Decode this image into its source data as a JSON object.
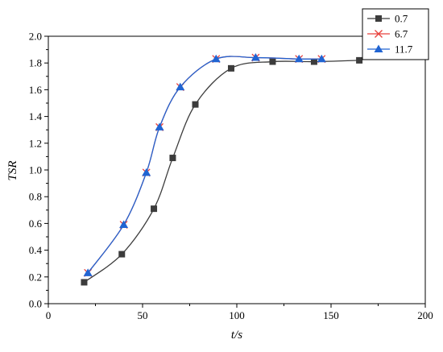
{
  "chart_data": {
    "type": "line",
    "xlabel": "t/s",
    "ylabel": "TSR",
    "xlim": [
      0,
      200
    ],
    "ylim": [
      0,
      2.0
    ],
    "x_ticks": [
      0,
      50,
      100,
      150,
      200
    ],
    "y_ticks": [
      "0.0",
      "0.2",
      "0.4",
      "0.6",
      "0.8",
      "1.0",
      "1.2",
      "1.4",
      "1.6",
      "1.8",
      "2.0"
    ],
    "legend_position": "top-right",
    "grid": false,
    "series": [
      {
        "name": "0.7",
        "color": "#3c3c3c",
        "marker": "square",
        "points": [
          [
            19,
            0.16
          ],
          [
            39,
            0.37
          ],
          [
            56,
            0.71
          ],
          [
            66,
            1.09
          ],
          [
            78,
            1.49
          ],
          [
            97,
            1.76
          ],
          [
            119,
            1.81
          ],
          [
            141,
            1.81
          ],
          [
            165,
            1.82
          ]
        ]
      },
      {
        "name": "6.7",
        "color": "#e8413c",
        "marker": "x",
        "points": [
          [
            21,
            0.23
          ],
          [
            40,
            0.59
          ],
          [
            52,
            0.98
          ],
          [
            59,
            1.32
          ],
          [
            70,
            1.62
          ],
          [
            89,
            1.83
          ],
          [
            110,
            1.84
          ],
          [
            133,
            1.83
          ],
          [
            145,
            1.83
          ]
        ]
      },
      {
        "name": "11.7",
        "color": "#2164d2",
        "marker": "triangle",
        "points": [
          [
            21,
            0.23
          ],
          [
            40,
            0.59
          ],
          [
            52,
            0.98
          ],
          [
            59,
            1.32
          ],
          [
            70,
            1.62
          ],
          [
            89,
            1.83
          ],
          [
            110,
            1.84
          ],
          [
            133,
            1.83
          ],
          [
            145,
            1.83
          ]
        ]
      }
    ]
  }
}
